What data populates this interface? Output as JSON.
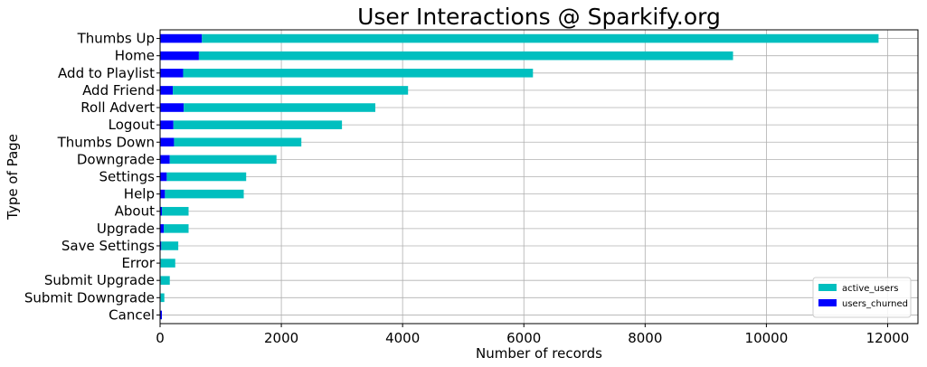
{
  "chart_data": {
    "type": "bar",
    "orientation": "horizontal",
    "stacked": true,
    "title": "User Interactions @ Sparkify.org",
    "xlabel": "Number of records",
    "ylabel": "Type of Page",
    "xlim": [
      0,
      12500
    ],
    "xticks": [
      0,
      2000,
      4000,
      6000,
      8000,
      10000,
      12000
    ],
    "xtick_labels": [
      "0",
      "2000",
      "4000",
      "6000",
      "8000",
      "10000",
      "12000"
    ],
    "grid": true,
    "legend_position": "bottom-right",
    "categories": [
      "Thumbs Up",
      "Home",
      "Add to Playlist",
      "Add Friend",
      "Roll Advert",
      "Logout",
      "Thumbs Down",
      "Downgrade",
      "Settings",
      "Help",
      "About",
      "Upgrade",
      "Save Settings",
      "Error",
      "Submit Upgrade",
      "Submit Downgrade",
      "Cancel"
    ],
    "series": [
      {
        "name": "users_churned",
        "color": "#0000ff",
        "values": [
          690,
          640,
          380,
          210,
          390,
          220,
          230,
          160,
          110,
          80,
          30,
          60,
          20,
          10,
          10,
          10,
          30
        ]
      },
      {
        "name": "active_users",
        "color": "#00bfbf",
        "values": [
          11160,
          8810,
          5770,
          3880,
          3160,
          2780,
          2100,
          1760,
          1310,
          1300,
          440,
          410,
          280,
          240,
          150,
          60,
          0
        ]
      }
    ]
  }
}
